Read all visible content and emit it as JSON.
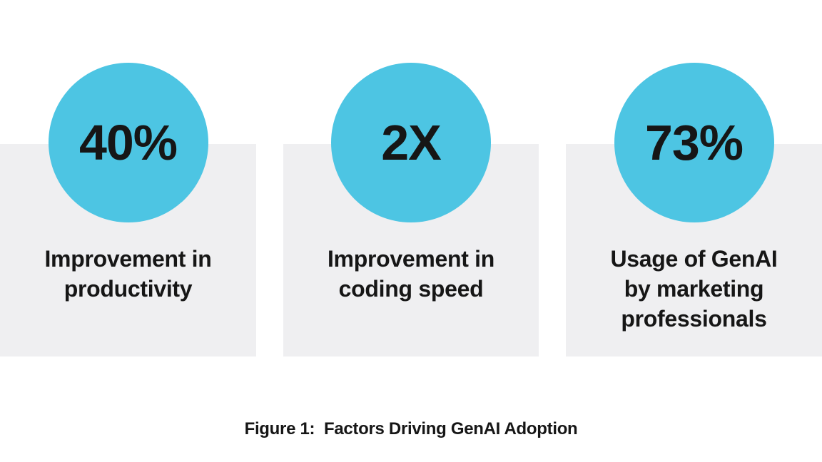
{
  "figure": {
    "caption": "Figure 1:  Factors Driving GenAI Adoption",
    "stats": [
      {
        "value": "40%",
        "label": "Improvement in\nproductivity"
      },
      {
        "value": "2X",
        "label": "Improvement in\ncoding speed"
      },
      {
        "value": "73%",
        "label": "Usage of GenAI\nby marketing\nprofessionals"
      }
    ]
  },
  "colors": {
    "circle": "#4DC5E3",
    "panel": "#EFEFF1",
    "text": "#161616",
    "background": "#FFFFFF"
  },
  "chart_data": {
    "type": "table",
    "title": "Figure 1: Factors Driving GenAI Adoption",
    "categories": [
      "Improvement in productivity",
      "Improvement in coding speed",
      "Usage of GenAI by marketing professionals"
    ],
    "values": [
      "40%",
      "2X",
      "73%"
    ],
    "notes": "Infographic of three stat cards: teal circle with value above a light-gray panel containing the label"
  }
}
